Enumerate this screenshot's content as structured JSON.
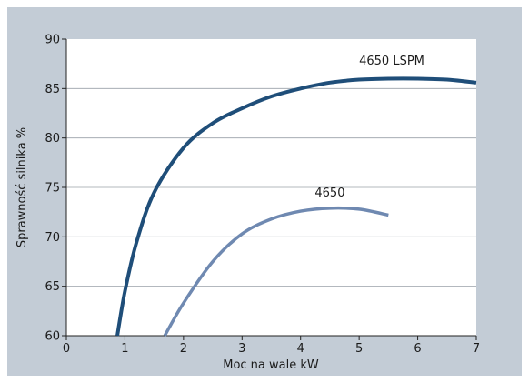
{
  "chart_data": {
    "type": "line",
    "title": "",
    "xlabel": "Moc na wale kW",
    "ylabel": "Sprawność silnika %",
    "xlim": [
      0,
      7
    ],
    "ylim": [
      60,
      90
    ],
    "x_ticks": [
      0,
      1,
      2,
      3,
      4,
      5,
      6,
      7
    ],
    "y_ticks": [
      60,
      65,
      70,
      75,
      80,
      85,
      90
    ],
    "grid": "horizontal",
    "series": [
      {
        "name": "4650 LSPM",
        "color": "#1f4e79",
        "x": [
          0.87,
          1.0,
          1.2,
          1.5,
          2.0,
          2.5,
          3.0,
          3.5,
          4.0,
          4.5,
          5.0,
          5.5,
          6.0,
          6.5,
          7.0
        ],
        "y": [
          60.0,
          64.5,
          69.5,
          74.5,
          79.0,
          81.5,
          83.0,
          84.2,
          85.0,
          85.6,
          85.9,
          86.0,
          86.0,
          85.9,
          85.6
        ]
      },
      {
        "name": "4650",
        "color": "#6f89b1",
        "x": [
          1.68,
          2.0,
          2.5,
          3.0,
          3.5,
          4.0,
          4.5,
          5.0,
          5.5
        ],
        "y": [
          60.0,
          63.3,
          67.5,
          70.3,
          71.8,
          72.6,
          72.9,
          72.8,
          72.2
        ]
      }
    ]
  }
}
